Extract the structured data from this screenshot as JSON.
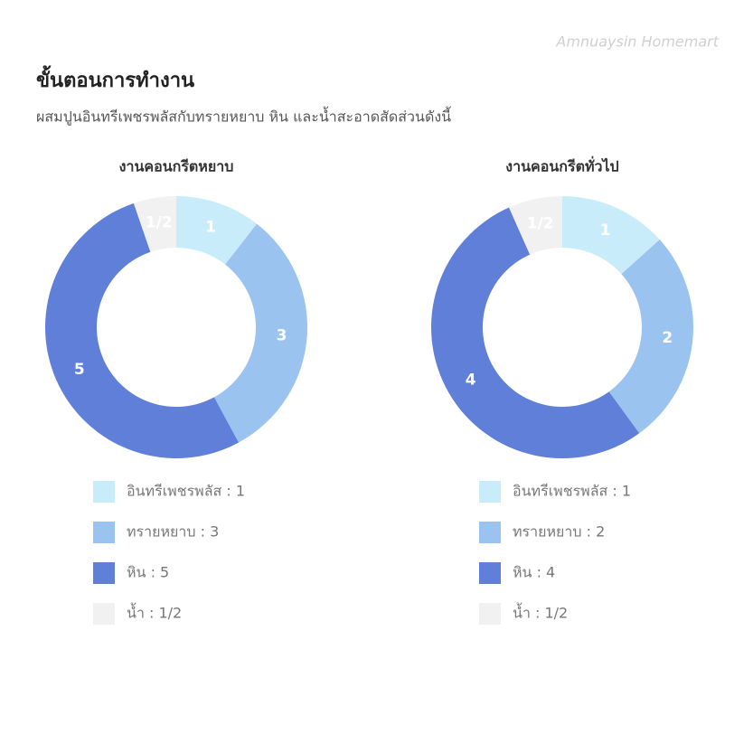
{
  "header": {
    "watermark": "Amnuaysin Homemart",
    "title": "ขั้นตอนการทำงาน",
    "subtitle": "ผสมปูนอินทรีเพชรพลัสกับทรายหยาบ หิน และน้ำสะอาดสัดส่วนดังนี้"
  },
  "chart_data": [
    {
      "type": "pie",
      "title": "งานคอนกรีตหยาบ",
      "categories": [
        "อินทรีเพชรพลัส : 1",
        "ทรายหยาบ : 3",
        "หิน : 5",
        "น้ำ : 1/2"
      ],
      "values": [
        1,
        3,
        5,
        0.5
      ],
      "value_labels": [
        "1",
        "3",
        "5",
        "1/2"
      ],
      "colors": [
        "#c9ecfb",
        "#9ac4ef",
        "#5f7fd8",
        "#f1f1f1"
      ]
    },
    {
      "type": "pie",
      "title": "งานคอนกรีตทั่วไป",
      "categories": [
        "อินทรีเพชรพลัส : 1",
        "ทรายหยาบ : 2",
        "หิน : 4",
        "น้ำ : 1/2"
      ],
      "values": [
        1,
        2,
        4,
        0.5
      ],
      "value_labels": [
        "1",
        "2",
        "4",
        "1/2"
      ],
      "colors": [
        "#c9ecfb",
        "#9ac4ef",
        "#5f7fd8",
        "#f1f1f1"
      ]
    }
  ]
}
